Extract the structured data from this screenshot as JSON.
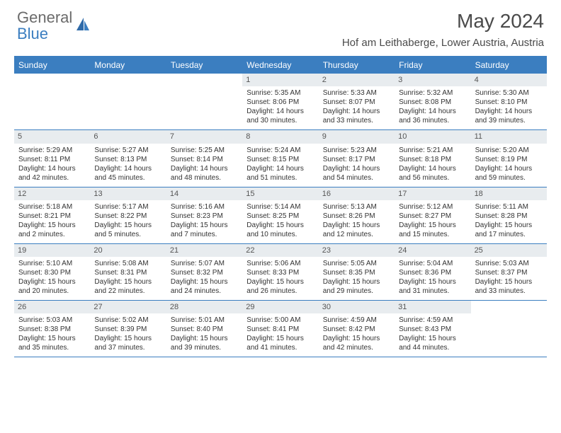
{
  "logo": {
    "part1": "General",
    "part2": "Blue"
  },
  "title": "May 2024",
  "location": "Hof am Leithaberge, Lower Austria, Austria",
  "weekdays": [
    "Sunday",
    "Monday",
    "Tuesday",
    "Wednesday",
    "Thursday",
    "Friday",
    "Saturday"
  ],
  "colors": {
    "header_bg": "#3b7ec0",
    "daynum_bg": "#e8ecef",
    "text": "#333333",
    "title_text": "#4a4a4a",
    "logo_gray": "#6b6b6b",
    "logo_blue": "#3b7ec0"
  },
  "weeks": [
    [
      {
        "num": "",
        "lines": []
      },
      {
        "num": "",
        "lines": []
      },
      {
        "num": "",
        "lines": []
      },
      {
        "num": "1",
        "lines": [
          "Sunrise: 5:35 AM",
          "Sunset: 8:06 PM",
          "Daylight: 14 hours",
          "and 30 minutes."
        ]
      },
      {
        "num": "2",
        "lines": [
          "Sunrise: 5:33 AM",
          "Sunset: 8:07 PM",
          "Daylight: 14 hours",
          "and 33 minutes."
        ]
      },
      {
        "num": "3",
        "lines": [
          "Sunrise: 5:32 AM",
          "Sunset: 8:08 PM",
          "Daylight: 14 hours",
          "and 36 minutes."
        ]
      },
      {
        "num": "4",
        "lines": [
          "Sunrise: 5:30 AM",
          "Sunset: 8:10 PM",
          "Daylight: 14 hours",
          "and 39 minutes."
        ]
      }
    ],
    [
      {
        "num": "5",
        "lines": [
          "Sunrise: 5:29 AM",
          "Sunset: 8:11 PM",
          "Daylight: 14 hours",
          "and 42 minutes."
        ]
      },
      {
        "num": "6",
        "lines": [
          "Sunrise: 5:27 AM",
          "Sunset: 8:13 PM",
          "Daylight: 14 hours",
          "and 45 minutes."
        ]
      },
      {
        "num": "7",
        "lines": [
          "Sunrise: 5:25 AM",
          "Sunset: 8:14 PM",
          "Daylight: 14 hours",
          "and 48 minutes."
        ]
      },
      {
        "num": "8",
        "lines": [
          "Sunrise: 5:24 AM",
          "Sunset: 8:15 PM",
          "Daylight: 14 hours",
          "and 51 minutes."
        ]
      },
      {
        "num": "9",
        "lines": [
          "Sunrise: 5:23 AM",
          "Sunset: 8:17 PM",
          "Daylight: 14 hours",
          "and 54 minutes."
        ]
      },
      {
        "num": "10",
        "lines": [
          "Sunrise: 5:21 AM",
          "Sunset: 8:18 PM",
          "Daylight: 14 hours",
          "and 56 minutes."
        ]
      },
      {
        "num": "11",
        "lines": [
          "Sunrise: 5:20 AM",
          "Sunset: 8:19 PM",
          "Daylight: 14 hours",
          "and 59 minutes."
        ]
      }
    ],
    [
      {
        "num": "12",
        "lines": [
          "Sunrise: 5:18 AM",
          "Sunset: 8:21 PM",
          "Daylight: 15 hours",
          "and 2 minutes."
        ]
      },
      {
        "num": "13",
        "lines": [
          "Sunrise: 5:17 AM",
          "Sunset: 8:22 PM",
          "Daylight: 15 hours",
          "and 5 minutes."
        ]
      },
      {
        "num": "14",
        "lines": [
          "Sunrise: 5:16 AM",
          "Sunset: 8:23 PM",
          "Daylight: 15 hours",
          "and 7 minutes."
        ]
      },
      {
        "num": "15",
        "lines": [
          "Sunrise: 5:14 AM",
          "Sunset: 8:25 PM",
          "Daylight: 15 hours",
          "and 10 minutes."
        ]
      },
      {
        "num": "16",
        "lines": [
          "Sunrise: 5:13 AM",
          "Sunset: 8:26 PM",
          "Daylight: 15 hours",
          "and 12 minutes."
        ]
      },
      {
        "num": "17",
        "lines": [
          "Sunrise: 5:12 AM",
          "Sunset: 8:27 PM",
          "Daylight: 15 hours",
          "and 15 minutes."
        ]
      },
      {
        "num": "18",
        "lines": [
          "Sunrise: 5:11 AM",
          "Sunset: 8:28 PM",
          "Daylight: 15 hours",
          "and 17 minutes."
        ]
      }
    ],
    [
      {
        "num": "19",
        "lines": [
          "Sunrise: 5:10 AM",
          "Sunset: 8:30 PM",
          "Daylight: 15 hours",
          "and 20 minutes."
        ]
      },
      {
        "num": "20",
        "lines": [
          "Sunrise: 5:08 AM",
          "Sunset: 8:31 PM",
          "Daylight: 15 hours",
          "and 22 minutes."
        ]
      },
      {
        "num": "21",
        "lines": [
          "Sunrise: 5:07 AM",
          "Sunset: 8:32 PM",
          "Daylight: 15 hours",
          "and 24 minutes."
        ]
      },
      {
        "num": "22",
        "lines": [
          "Sunrise: 5:06 AM",
          "Sunset: 8:33 PM",
          "Daylight: 15 hours",
          "and 26 minutes."
        ]
      },
      {
        "num": "23",
        "lines": [
          "Sunrise: 5:05 AM",
          "Sunset: 8:35 PM",
          "Daylight: 15 hours",
          "and 29 minutes."
        ]
      },
      {
        "num": "24",
        "lines": [
          "Sunrise: 5:04 AM",
          "Sunset: 8:36 PM",
          "Daylight: 15 hours",
          "and 31 minutes."
        ]
      },
      {
        "num": "25",
        "lines": [
          "Sunrise: 5:03 AM",
          "Sunset: 8:37 PM",
          "Daylight: 15 hours",
          "and 33 minutes."
        ]
      }
    ],
    [
      {
        "num": "26",
        "lines": [
          "Sunrise: 5:03 AM",
          "Sunset: 8:38 PM",
          "Daylight: 15 hours",
          "and 35 minutes."
        ]
      },
      {
        "num": "27",
        "lines": [
          "Sunrise: 5:02 AM",
          "Sunset: 8:39 PM",
          "Daylight: 15 hours",
          "and 37 minutes."
        ]
      },
      {
        "num": "28",
        "lines": [
          "Sunrise: 5:01 AM",
          "Sunset: 8:40 PM",
          "Daylight: 15 hours",
          "and 39 minutes."
        ]
      },
      {
        "num": "29",
        "lines": [
          "Sunrise: 5:00 AM",
          "Sunset: 8:41 PM",
          "Daylight: 15 hours",
          "and 41 minutes."
        ]
      },
      {
        "num": "30",
        "lines": [
          "Sunrise: 4:59 AM",
          "Sunset: 8:42 PM",
          "Daylight: 15 hours",
          "and 42 minutes."
        ]
      },
      {
        "num": "31",
        "lines": [
          "Sunrise: 4:59 AM",
          "Sunset: 8:43 PM",
          "Daylight: 15 hours",
          "and 44 minutes."
        ]
      },
      {
        "num": "",
        "lines": []
      }
    ]
  ]
}
